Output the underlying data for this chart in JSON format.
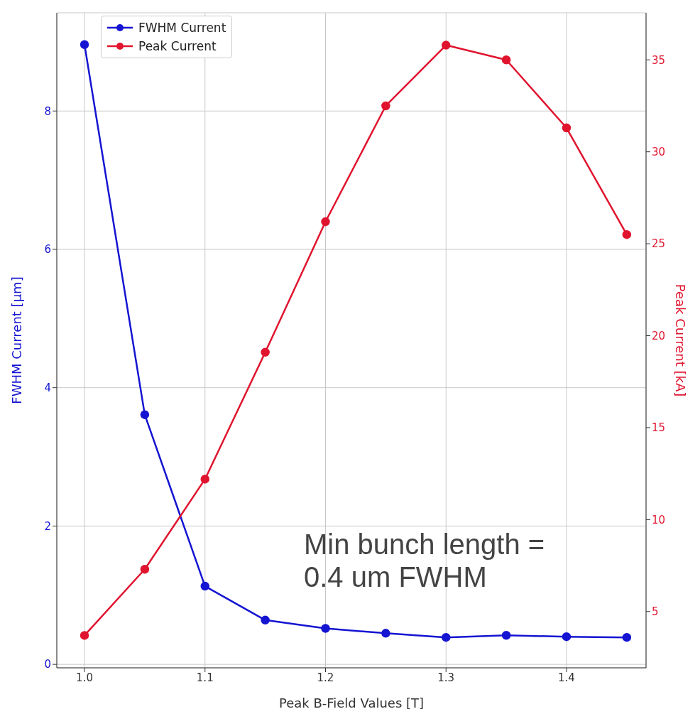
{
  "chart_data": {
    "type": "line",
    "x": [
      1.0,
      1.05,
      1.1,
      1.15,
      1.2,
      1.25,
      1.3,
      1.35,
      1.4,
      1.45
    ],
    "series": [
      {
        "name": "FWHM Current",
        "color": "#1414d2",
        "values": [
          8.96,
          3.61,
          1.13,
          0.64,
          0.52,
          0.45,
          0.39,
          0.42,
          0.4,
          0.39
        ]
      },
      {
        "name": "Peak Current",
        "color": "#e0142e",
        "axis": "y2",
        "values": [
          3.7,
          7.3,
          12.2,
          19.1,
          26.2,
          32.5,
          35.8,
          35.0,
          31.3,
          25.5
        ]
      }
    ],
    "xlabel": "Peak B-Field Values [T]",
    "ylabel": "FWHM Current [µm]",
    "y2label": "Peak Current [kA]",
    "xlim": [
      0.977,
      1.466
    ],
    "xticks": [
      {
        "value": 1.0,
        "label": "1.0"
      },
      1.1,
      1.2,
      1.3,
      1.4
    ],
    "ylim": [
      -0.05,
      9.42
    ],
    "yticks": [
      0,
      2,
      4,
      6,
      8
    ],
    "y2lim": [
      1.94,
      37.56
    ],
    "y2ticks": [
      5,
      10,
      15,
      20,
      25,
      30,
      35
    ],
    "annotations": [
      "Min bunch length = 0.4 um FWHM"
    ],
    "grid": true,
    "legend": "top left",
    "marker": "circle",
    "line_style": "solid"
  }
}
